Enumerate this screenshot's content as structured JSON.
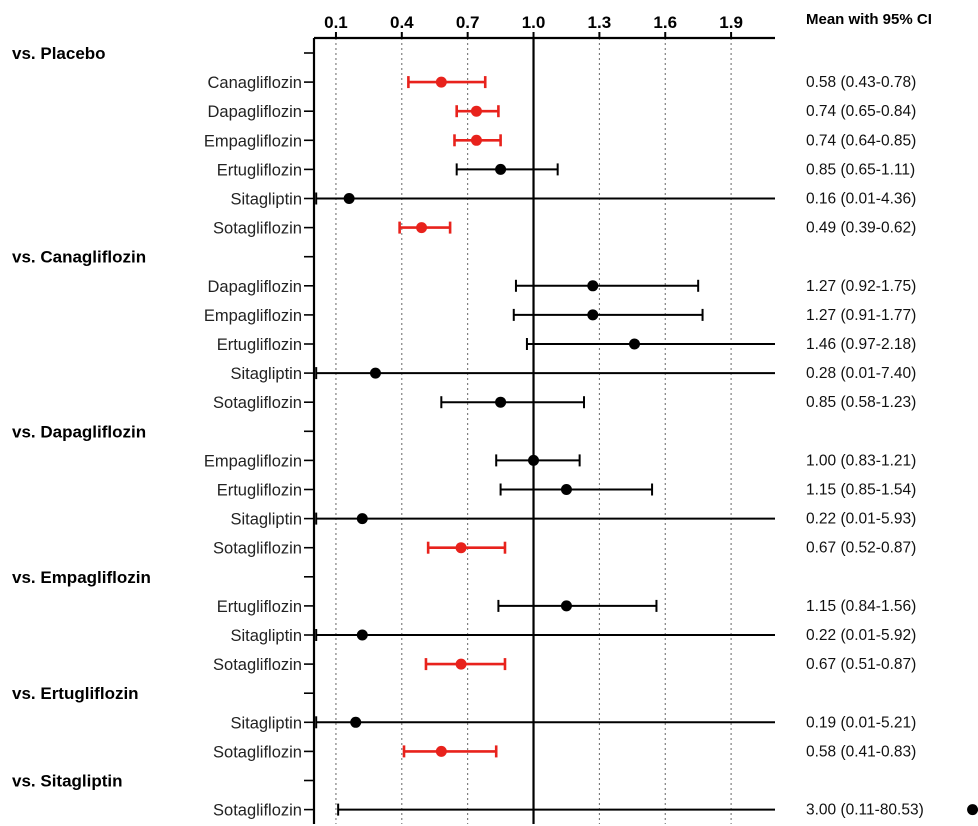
{
  "chart_data": {
    "type": "forest",
    "x_ticks": [
      0.1,
      0.4,
      0.7,
      1.0,
      1.3,
      1.6,
      1.9
    ],
    "x_tick_labels": [
      "0.1",
      "0.4",
      "0.7",
      "1.0",
      "1.3",
      "1.6",
      "1.9"
    ],
    "xlim": [
      0.0,
      2.1
    ],
    "reference_line": 1.0,
    "ci_header": "Mean with 95% CI",
    "colors": {
      "significant": "#e8221c",
      "nonsignificant": "#000000"
    },
    "groups": [
      {
        "label": "vs. Placebo",
        "rows": [
          {
            "label": "Canagliflozin",
            "mean": 0.58,
            "lower": 0.43,
            "upper": 0.78,
            "ci_text": "0.58 (0.43-0.78)",
            "significant": true
          },
          {
            "label": "Dapagliflozin",
            "mean": 0.74,
            "lower": 0.65,
            "upper": 0.84,
            "ci_text": "0.74 (0.65-0.84)",
            "significant": true
          },
          {
            "label": "Empagliflozin",
            "mean": 0.74,
            "lower": 0.64,
            "upper": 0.85,
            "ci_text": "0.74 (0.64-0.85)",
            "significant": true
          },
          {
            "label": "Ertugliflozin",
            "mean": 0.85,
            "lower": 0.65,
            "upper": 1.11,
            "ci_text": "0.85 (0.65-1.11)",
            "significant": false
          },
          {
            "label": "Sitagliptin",
            "mean": 0.16,
            "lower": 0.01,
            "upper": 4.36,
            "ci_text": "0.16 (0.01-4.36)",
            "significant": false
          },
          {
            "label": "Sotagliflozin",
            "mean": 0.49,
            "lower": 0.39,
            "upper": 0.62,
            "ci_text": "0.49 (0.39-0.62)",
            "significant": true
          }
        ]
      },
      {
        "label": "vs. Canagliflozin",
        "rows": [
          {
            "label": "Dapagliflozin",
            "mean": 1.27,
            "lower": 0.92,
            "upper": 1.75,
            "ci_text": "1.27 (0.92-1.75)",
            "significant": false
          },
          {
            "label": "Empagliflozin",
            "mean": 1.27,
            "lower": 0.91,
            "upper": 1.77,
            "ci_text": "1.27 (0.91-1.77)",
            "significant": false
          },
          {
            "label": "Ertugliflozin",
            "mean": 1.46,
            "lower": 0.97,
            "upper": 2.18,
            "ci_text": "1.46 (0.97-2.18)",
            "significant": false
          },
          {
            "label": "Sitagliptin",
            "mean": 0.28,
            "lower": 0.01,
            "upper": 7.4,
            "ci_text": "0.28 (0.01-7.40)",
            "significant": false
          },
          {
            "label": "Sotagliflozin",
            "mean": 0.85,
            "lower": 0.58,
            "upper": 1.23,
            "ci_text": "0.85 (0.58-1.23)",
            "significant": false
          }
        ]
      },
      {
        "label": "vs. Dapagliflozin",
        "rows": [
          {
            "label": "Empagliflozin",
            "mean": 1.0,
            "lower": 0.83,
            "upper": 1.21,
            "ci_text": "1.00 (0.83-1.21)",
            "significant": false
          },
          {
            "label": "Ertugliflozin",
            "mean": 1.15,
            "lower": 0.85,
            "upper": 1.54,
            "ci_text": "1.15 (0.85-1.54)",
            "significant": false
          },
          {
            "label": "Sitagliptin",
            "mean": 0.22,
            "lower": 0.01,
            "upper": 5.93,
            "ci_text": "0.22 (0.01-5.93)",
            "significant": false
          },
          {
            "label": "Sotagliflozin",
            "mean": 0.67,
            "lower": 0.52,
            "upper": 0.87,
            "ci_text": "0.67 (0.52-0.87)",
            "significant": true
          }
        ]
      },
      {
        "label": "vs. Empagliflozin",
        "rows": [
          {
            "label": "Ertugliflozin",
            "mean": 1.15,
            "lower": 0.84,
            "upper": 1.56,
            "ci_text": "1.15 (0.84-1.56)",
            "significant": false
          },
          {
            "label": "Sitagliptin",
            "mean": 0.22,
            "lower": 0.01,
            "upper": 5.92,
            "ci_text": "0.22 (0.01-5.92)",
            "significant": false
          },
          {
            "label": "Sotagliflozin",
            "mean": 0.67,
            "lower": 0.51,
            "upper": 0.87,
            "ci_text": "0.67 (0.51-0.87)",
            "significant": true
          }
        ]
      },
      {
        "label": "vs. Ertugliflozin",
        "rows": [
          {
            "label": "Sitagliptin",
            "mean": 0.19,
            "lower": 0.01,
            "upper": 5.21,
            "ci_text": "0.19 (0.01-5.21)",
            "significant": false
          },
          {
            "label": "Sotagliflozin",
            "mean": 0.58,
            "lower": 0.41,
            "upper": 0.83,
            "ci_text": "0.58 (0.41-0.83)",
            "significant": true
          }
        ]
      },
      {
        "label": "vs. Sitagliptin",
        "rows": [
          {
            "label": "Sotagliflozin",
            "mean": 3.0,
            "lower": 0.11,
            "upper": 80.53,
            "ci_text": "3.00 (0.11-80.53)",
            "significant": false
          }
        ]
      }
    ]
  }
}
